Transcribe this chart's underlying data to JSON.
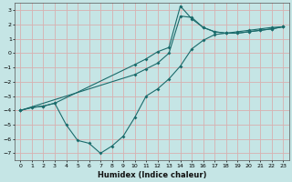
{
  "title": "",
  "xlabel": "Humidex (Indice chaleur)",
  "bg_color": "#c5e5e5",
  "grid_color": "#d8b0b0",
  "line_color": "#1a6b6b",
  "xlim": [
    -0.5,
    23.5
  ],
  "ylim": [
    -7.5,
    3.5
  ],
  "xticks": [
    0,
    1,
    2,
    3,
    4,
    5,
    6,
    7,
    8,
    9,
    10,
    11,
    12,
    13,
    14,
    15,
    16,
    17,
    18,
    19,
    20,
    21,
    22,
    23
  ],
  "yticks": [
    -7,
    -6,
    -5,
    -4,
    -3,
    -2,
    -1,
    0,
    1,
    2,
    3
  ],
  "line1_x": [
    0,
    1,
    2,
    3,
    10,
    11,
    12,
    13,
    14,
    15,
    16,
    17,
    18,
    19,
    20,
    21,
    22,
    23
  ],
  "line1_y": [
    -4.0,
    -3.8,
    -3.7,
    -3.5,
    -0.8,
    -0.4,
    0.1,
    0.4,
    3.3,
    2.4,
    1.8,
    1.5,
    1.4,
    1.4,
    1.5,
    1.6,
    1.7,
    1.85
  ],
  "line2_x": [
    0,
    1,
    2,
    3,
    4,
    5,
    6,
    7,
    8,
    9,
    10,
    11,
    12,
    13,
    14,
    15,
    16,
    17,
    18,
    19,
    20,
    21,
    22,
    23
  ],
  "line2_y": [
    -4.0,
    -3.8,
    -3.7,
    -3.5,
    -5.0,
    -6.1,
    -6.3,
    -7.0,
    -6.5,
    -5.8,
    -4.5,
    -3.0,
    -2.5,
    -1.8,
    -0.9,
    0.3,
    0.9,
    1.3,
    1.4,
    1.5,
    1.6,
    1.7,
    1.8,
    1.85
  ],
  "line3_x": [
    0,
    10,
    11,
    12,
    13,
    14,
    15,
    16,
    17,
    18,
    19,
    20,
    21,
    22,
    23
  ],
  "line3_y": [
    -4.0,
    -1.5,
    -1.1,
    -0.7,
    0.0,
    2.6,
    2.5,
    1.8,
    1.5,
    1.4,
    1.4,
    1.5,
    1.6,
    1.7,
    1.85
  ]
}
